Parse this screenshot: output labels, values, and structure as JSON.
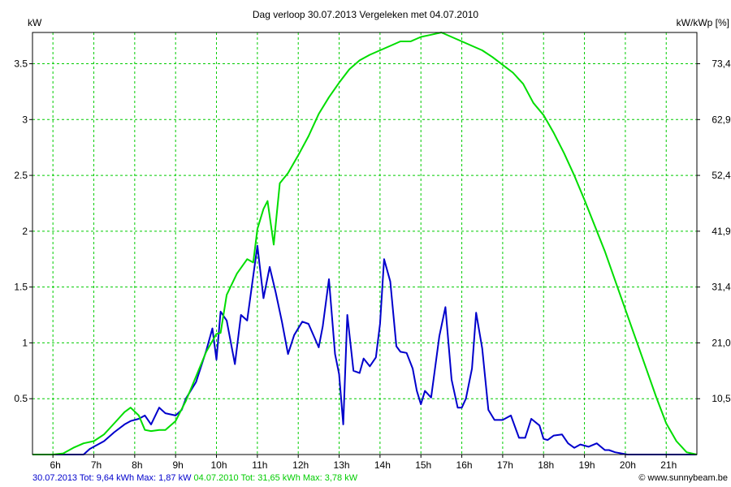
{
  "chart_data": {
    "type": "line",
    "title": "Dag  verloop 30.07.2013    Vergeleken met 04.07.2010",
    "ylabel_left": "kW",
    "ylabel_right": "kW/kWp [%]",
    "xlim": [
      5.5,
      21.75
    ],
    "ylim": [
      0,
      3.78
    ],
    "x_ticks": [
      6,
      7,
      8,
      9,
      10,
      11,
      12,
      13,
      14,
      15,
      16,
      17,
      18,
      19,
      20,
      21
    ],
    "x_tick_labels": [
      "6h",
      "7h",
      "8h",
      "9h",
      "10h",
      "11h",
      "12h",
      "13h",
      "14h",
      "15h",
      "16h",
      "17h",
      "18h",
      "19h",
      "20h",
      "21h"
    ],
    "y_ticks_left": [
      0.5,
      1,
      1.5,
      2,
      2.5,
      3,
      3.5
    ],
    "y_tick_labels_left": [
      "0.5",
      "1",
      "1.5",
      "2",
      "2.5",
      "3",
      "3.5"
    ],
    "y_tick_labels_right": [
      "10,5",
      "21,0",
      "31,4",
      "41,9",
      "52,4",
      "62,9",
      "73,4"
    ],
    "grid": true,
    "series": [
      {
        "name": "30.07.2013 Tot: 9,64 kWh Max: 1,87 kW",
        "color": "#0000cc",
        "x": [
          5.5,
          6.75,
          6.9,
          7.0,
          7.25,
          7.5,
          7.75,
          7.9,
          8.1,
          8.25,
          8.4,
          8.6,
          8.75,
          9.0,
          9.15,
          9.25,
          9.5,
          9.75,
          9.9,
          10.0,
          10.1,
          10.25,
          10.45,
          10.6,
          10.75,
          10.9,
          11.0,
          11.15,
          11.3,
          11.45,
          11.6,
          11.75,
          11.9,
          12.1,
          12.25,
          12.5,
          12.6,
          12.75,
          12.9,
          13.0,
          13.1,
          13.2,
          13.35,
          13.5,
          13.6,
          13.75,
          13.9,
          14.0,
          14.1,
          14.25,
          14.4,
          14.5,
          14.65,
          14.8,
          14.9,
          15.0,
          15.1,
          15.25,
          15.45,
          15.6,
          15.75,
          15.9,
          16.0,
          16.1,
          16.25,
          16.35,
          16.5,
          16.65,
          16.8,
          17.0,
          17.2,
          17.4,
          17.55,
          17.7,
          17.9,
          18.0,
          18.1,
          18.25,
          18.45,
          18.6,
          18.75,
          18.9,
          19.1,
          19.3,
          19.5,
          19.6,
          19.75,
          19.9,
          20.05,
          20.25,
          20.4,
          20.55,
          20.75,
          20.9,
          21.0,
          21.3,
          21.75
        ],
        "y": [
          0,
          0,
          0.05,
          0.07,
          0.12,
          0.2,
          0.27,
          0.3,
          0.32,
          0.35,
          0.27,
          0.42,
          0.37,
          0.35,
          0.4,
          0.5,
          0.65,
          0.93,
          1.13,
          0.85,
          1.28,
          1.2,
          0.81,
          1.25,
          1.2,
          1.6,
          1.87,
          1.4,
          1.68,
          1.45,
          1.19,
          0.9,
          1.07,
          1.19,
          1.17,
          0.96,
          1.15,
          1.57,
          0.9,
          0.72,
          0.27,
          1.25,
          0.75,
          0.73,
          0.86,
          0.79,
          0.87,
          1.17,
          1.75,
          1.55,
          0.97,
          0.92,
          0.91,
          0.77,
          0.57,
          0.45,
          0.57,
          0.51,
          1.06,
          1.32,
          0.67,
          0.42,
          0.42,
          0.5,
          0.77,
          1.27,
          0.95,
          0.4,
          0.31,
          0.31,
          0.35,
          0.15,
          0.15,
          0.32,
          0.26,
          0.14,
          0.13,
          0.17,
          0.18,
          0.1,
          0.06,
          0.09,
          0.07,
          0.1,
          0.04,
          0.04,
          0.02,
          0.01,
          0,
          0,
          0,
          0,
          0,
          0,
          0,
          0,
          0
        ]
      },
      {
        "name": "04.07.2010 Tot: 31,65 kWh Max: 3,78 kW",
        "color": "#00dd00",
        "x": [
          5.5,
          6.0,
          6.25,
          6.5,
          6.75,
          7.0,
          7.25,
          7.5,
          7.75,
          7.9,
          8.1,
          8.25,
          8.4,
          8.6,
          8.75,
          9.0,
          9.25,
          9.5,
          9.75,
          10.0,
          10.1,
          10.25,
          10.5,
          10.75,
          10.9,
          11.0,
          11.15,
          11.25,
          11.4,
          11.55,
          11.75,
          12.0,
          12.25,
          12.5,
          12.75,
          13.0,
          13.25,
          13.5,
          13.75,
          14.0,
          14.25,
          14.5,
          14.75,
          15.0,
          15.25,
          15.5,
          15.75,
          16.0,
          16.25,
          16.5,
          16.75,
          17.0,
          17.25,
          17.5,
          17.75,
          18.0,
          18.25,
          18.5,
          18.75,
          19.0,
          19.25,
          19.5,
          19.75,
          20.0,
          20.25,
          20.5,
          20.75,
          21.0,
          21.25,
          21.5,
          21.75
        ],
        "y": [
          0,
          0,
          0.01,
          0.06,
          0.1,
          0.12,
          0.18,
          0.28,
          0.38,
          0.42,
          0.35,
          0.22,
          0.21,
          0.22,
          0.22,
          0.3,
          0.48,
          0.7,
          0.92,
          1.08,
          1.09,
          1.43,
          1.62,
          1.75,
          1.72,
          2.02,
          2.2,
          2.27,
          1.88,
          2.43,
          2.52,
          2.68,
          2.85,
          3.05,
          3.2,
          3.33,
          3.45,
          3.53,
          3.58,
          3.62,
          3.66,
          3.7,
          3.7,
          3.74,
          3.76,
          3.78,
          3.74,
          3.7,
          3.66,
          3.62,
          3.56,
          3.49,
          3.42,
          3.32,
          3.15,
          3.04,
          2.88,
          2.7,
          2.5,
          2.28,
          2.05,
          1.82,
          1.56,
          1.3,
          1.04,
          0.78,
          0.52,
          0.28,
          0.12,
          0.02,
          0
        ]
      }
    ]
  },
  "legend": {
    "series1": "30.07.2013 Tot: 9,64 kWh Max: 1,87 kW",
    "series2": "04.07.2010 Tot: 31,65 kWh Max: 3,78 kW"
  },
  "copyright": "© www.sunnybeam.be"
}
